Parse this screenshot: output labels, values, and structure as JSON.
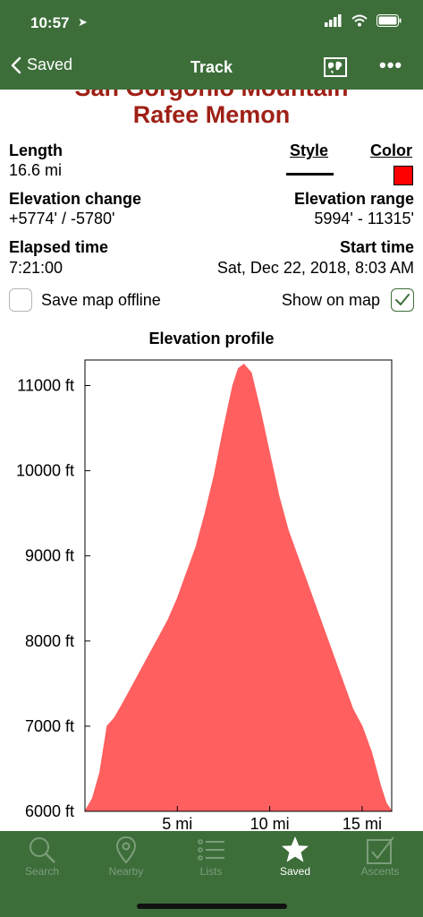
{
  "status_bar": {
    "time": "10:57"
  },
  "nav": {
    "back_label": "Saved",
    "title": "Track"
  },
  "track": {
    "peak_name": "San Gorgonio Mountain",
    "author": "Rafee Memon",
    "length_label": "Length",
    "length_value": "16.6 mi",
    "style_label": "Style",
    "color_label": "Color",
    "track_color": "#ff0000",
    "elev_change_label": "Elevation change",
    "elev_change_value": "+5774' / -5780'",
    "elev_range_label": "Elevation range",
    "elev_range_value": "5994' - 11315'",
    "elapsed_label": "Elapsed time",
    "elapsed_value": "7:21:00",
    "start_label": "Start time",
    "start_value": "Sat, Dec 22, 2018, 8:03 AM",
    "save_offline_label": "Save map offline",
    "save_offline_checked": false,
    "show_on_map_label": "Show on map",
    "show_on_map_checked": true
  },
  "chart_data": {
    "type": "area",
    "title": "Elevation profile",
    "xlabel": "",
    "ylabel": "",
    "x_ticks": [
      "5 mi",
      "10 mi",
      "15 mi"
    ],
    "y_ticks": [
      "6000 ft",
      "7000 ft",
      "8000 ft",
      "9000 ft",
      "10000 ft",
      "11000 ft"
    ],
    "xlim": [
      0,
      16.6
    ],
    "ylim": [
      6000,
      11300
    ],
    "fill_color": "#ff5f5f",
    "x": [
      0,
      0.4,
      0.8,
      1.2,
      1.6,
      2.0,
      2.5,
      3.0,
      3.5,
      4.0,
      4.5,
      5.0,
      5.5,
      6.0,
      6.5,
      7.0,
      7.5,
      8.0,
      8.3,
      8.6,
      9.0,
      9.5,
      10.0,
      10.5,
      11.0,
      11.5,
      12.0,
      12.5,
      13.0,
      13.5,
      14.0,
      14.5,
      15.0,
      15.5,
      16.0,
      16.3,
      16.6
    ],
    "y": [
      6000,
      6150,
      6450,
      7000,
      7100,
      7250,
      7450,
      7650,
      7850,
      8050,
      8250,
      8500,
      8800,
      9100,
      9500,
      9950,
      10500,
      11000,
      11200,
      11250,
      11150,
      10700,
      10200,
      9700,
      9300,
      9000,
      8700,
      8400,
      8100,
      7800,
      7500,
      7200,
      7000,
      6700,
      6300,
      6100,
      6000
    ]
  },
  "tabs": [
    {
      "label": "Search",
      "icon": "search-icon",
      "active": false
    },
    {
      "label": "Nearby",
      "icon": "location-pin-icon",
      "active": false
    },
    {
      "label": "Lists",
      "icon": "list-icon",
      "active": false
    },
    {
      "label": "Saved",
      "icon": "star-icon",
      "active": true
    },
    {
      "label": "Ascents",
      "icon": "checkmark-box-icon",
      "active": false
    }
  ],
  "colors": {
    "header_green": "#3d6e3a",
    "title_red": "#9e2016",
    "inactive_tab": "#7c9e7a"
  }
}
